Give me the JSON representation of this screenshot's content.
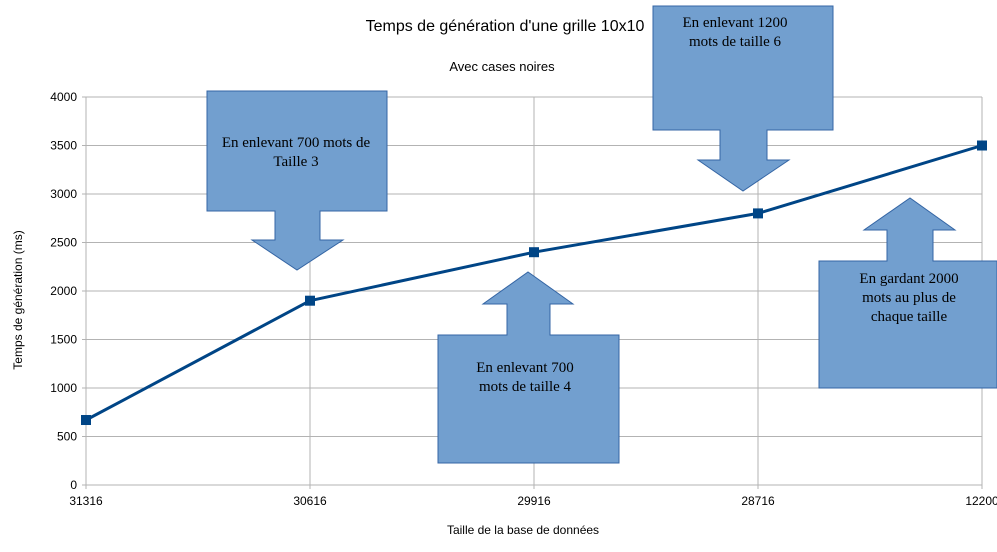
{
  "chart_data": {
    "type": "line",
    "title": "Temps de génération d'une grille 10x10",
    "subtitle": "Avec cases noires",
    "xlabel": "Taille de la base de données",
    "ylabel": "Temps de génération (ms)",
    "categories": [
      "31316",
      "30616",
      "29916",
      "28716",
      "12200"
    ],
    "series": [
      {
        "values": [
          670,
          1900,
          2400,
          2800,
          3500
        ]
      }
    ],
    "ylim": [
      0,
      4000
    ],
    "yticks": [
      0,
      500,
      1000,
      1500,
      2000,
      2500,
      3000,
      3500,
      4000
    ],
    "grid": true,
    "line_color": "#004586",
    "marker": "square",
    "annotations": [
      {
        "lines": [
          "En enlevant 700 mots de",
          "Taille 3"
        ],
        "points_to": "30616"
      },
      {
        "lines": [
          "En enlevant 700",
          "mots de taille 4"
        ],
        "points_to": "29916"
      },
      {
        "lines": [
          "En enlevant 1200",
          "mots de taille 6"
        ],
        "points_to": "28716"
      },
      {
        "lines": [
          "En gardant 2000",
          "mots au plus de",
          "chaque taille"
        ],
        "points_to": "12200"
      }
    ],
    "callout_fill": "#729fcf",
    "callout_stroke": "#3465a4"
  }
}
